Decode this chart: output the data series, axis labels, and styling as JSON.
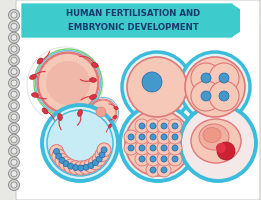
{
  "title_line1": "HUMAN FERTILISATION AND",
  "title_line2": "EMBRYONIC DEVELOPMENT",
  "title_bg": "#3ecbcb",
  "title_text_color": "#1a3a6e",
  "notebook_bg": "#ffffff",
  "outer_bg": "#e8e8e4",
  "border_teal": "#3bbcdc",
  "cell_fill": "#f5c8b8",
  "cell_border": "#e07878",
  "nucleus_blue": "#4499cc",
  "sperm_red": "#dd3344",
  "zona_fill": "#e0f5f8",
  "ring_color": "#999999"
}
